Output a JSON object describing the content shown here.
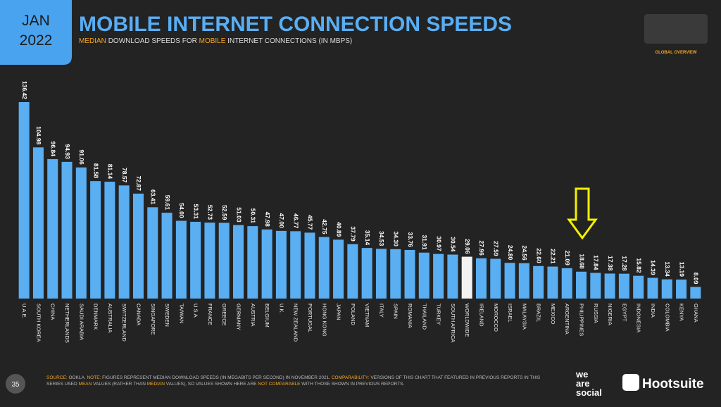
{
  "chart_data": {
    "type": "bar",
    "badge": [
      "JAN",
      "2022"
    ],
    "title": "MOBILE INTERNET CONNECTION SPEEDS",
    "subtitle": [
      {
        "text": "MEDIAN",
        "highlight": true
      },
      {
        "text": "DOWNLOAD SPEEDS FOR",
        "highlight": false
      },
      {
        "text": "MOBILE",
        "highlight": true
      },
      {
        "text": "INTERNET CONNECTIONS (IN MBPS)",
        "highlight": false
      }
    ],
    "corner_label": "GLOBAL OVERVIEW",
    "categories": [
      "U.A.E.",
      "SOUTH KOREA",
      "CHINA",
      "NETHERLANDS",
      "SAUDI ARABIA",
      "DENMARK",
      "AUSTRALIA",
      "SWITZERLAND",
      "CANADA",
      "SINGAPORE",
      "SWEDEN",
      "TAIWAN",
      "U.S.A.",
      "FRANCE",
      "GREECE",
      "GERMANY",
      "AUSTRIA",
      "BELGIUM",
      "U.K.",
      "NEW ZEALAND",
      "PORTUGAL",
      "HONG KONG",
      "JAPAN",
      "POLAND",
      "VIETNAM",
      "ITALY",
      "SPAIN",
      "ROMANIA",
      "THAILAND",
      "TURKEY",
      "SOUTH AFRICA",
      "WORLDWIDE",
      "IRELAND",
      "MOROCCO",
      "ISRAEL",
      "MALAYSIA",
      "BRAZIL",
      "MEXICO",
      "ARGENTINA",
      "PHILIPPINES",
      "RUSSIA",
      "NIGERIA",
      "EGYPT",
      "INDONESIA",
      "INDIA",
      "COLOMBIA",
      "KENYA",
      "GHANA"
    ],
    "values": [
      136.42,
      104.98,
      96.84,
      94.93,
      91.06,
      81.58,
      81.14,
      78.57,
      72.87,
      63.41,
      59.61,
      54.0,
      53.31,
      52.73,
      52.59,
      51.03,
      50.31,
      47.98,
      47.0,
      46.77,
      45.77,
      42.75,
      40.89,
      37.79,
      35.14,
      34.53,
      34.3,
      33.76,
      31.91,
      30.97,
      30.54,
      29.06,
      27.96,
      27.59,
      24.8,
      24.56,
      22.6,
      22.21,
      21.09,
      18.68,
      17.84,
      17.38,
      17.28,
      15.82,
      14.39,
      13.34,
      13.19,
      8.09
    ],
    "value_labels": [
      "136.42",
      "104.98",
      "96.84",
      "94.93",
      "91.06",
      "81.58",
      "81.14",
      "78.57",
      "72.87",
      "63.41",
      "59.61",
      "54.00",
      "53.31",
      "52.73",
      "52.59",
      "51.03",
      "50.31",
      "47.98",
      "47.00",
      "46.77",
      "45.77",
      "42.75",
      "40.89",
      "37.79",
      "35.14",
      "34.53",
      "34.30",
      "33.76",
      "31.91",
      "30.97",
      "30.54",
      "29.06",
      "27.96",
      "27.59",
      "24.80",
      "24.56",
      "22.60",
      "22.21",
      "21.09",
      "18.68",
      "17.84",
      "17.38",
      "17.28",
      "15.82",
      "14.39",
      "13.34",
      "13.19",
      "8.09"
    ],
    "colors": [
      "#5aaef2",
      "#5aaef2",
      "#5aaef2",
      "#5aaef2",
      "#5aaef2",
      "#5aaef2",
      "#5aaef2",
      "#5aaef2",
      "#5aaef2",
      "#5aaef2",
      "#5aaef2",
      "#5aaef2",
      "#5aaef2",
      "#5aaef2",
      "#5aaef2",
      "#5aaef2",
      "#5aaef2",
      "#5aaef2",
      "#5aaef2",
      "#5aaef2",
      "#5aaef2",
      "#5aaef2",
      "#5aaef2",
      "#5aaef2",
      "#5aaef2",
      "#5aaef2",
      "#5aaef2",
      "#5aaef2",
      "#5aaef2",
      "#5aaef2",
      "#5aaef2",
      "#f2f2f2",
      "#5aaef2",
      "#5aaef2",
      "#5aaef2",
      "#5aaef2",
      "#5aaef2",
      "#5aaef2",
      "#5aaef2",
      "#5aaef2",
      "#5aaef2",
      "#5aaef2",
      "#5aaef2",
      "#5aaef2",
      "#5aaef2",
      "#5aaef2",
      "#5aaef2",
      "#5aaef2"
    ],
    "page_number": "35",
    "footnote": [
      {
        "text": "SOURCE:",
        "highlight": true
      },
      {
        "text": "OOKLA.",
        "highlight": false
      },
      {
        "text": "NOTE:",
        "highlight": true
      },
      {
        "text": "FIGURES REPRESENT MEDIAN DOWNLOAD SPEEDS (IN MEGABITS PER SECOND) IN NOVEMBER 2021.",
        "highlight": false
      },
      {
        "text": "COMPARABILITY:",
        "highlight": true
      },
      {
        "text": "VERSIONS OF THIS CHART THAT FEATURED IN PREVIOUS REPORTS IN THIS SERIES USED",
        "highlight": false
      },
      {
        "text": "MEAN",
        "highlight": true
      },
      {
        "text": "VALUES (RATHER THAN",
        "highlight": false
      },
      {
        "text": "MEDIAN",
        "highlight": true
      },
      {
        "text": "VALUES), SO VALUES SHOWN HERE ARE",
        "highlight": false
      },
      {
        "text": "NOT COMPARABLE",
        "highlight": true
      },
      {
        "text": "WITH THOSE SHOWN IN PREVIOUS REPORTS.",
        "highlight": false
      }
    ],
    "logos": [
      "we",
      "are",
      "social",
      "Hootsuite"
    ]
  }
}
